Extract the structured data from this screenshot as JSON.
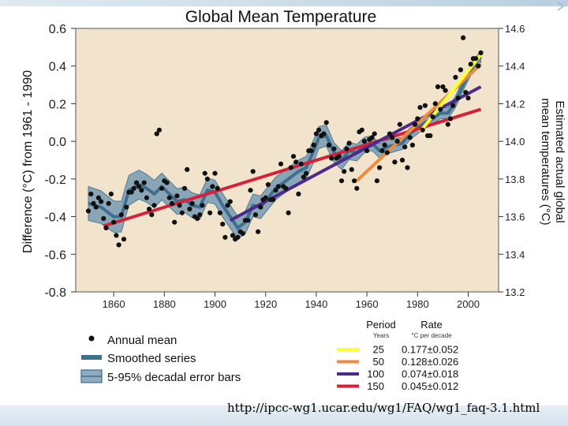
{
  "source_url": "http://ipcc-wg1.ucar.edu/wg1/FAQ/wg1_faq-3.1.html",
  "colors": {
    "panel_bg": "#f2e4cc",
    "points": "#111111",
    "smoothed": "#3f6f8e",
    "error_band": "#7f9fb4",
    "trend_25": "#ffff33",
    "trend_50": "#f08a3c",
    "trend_100": "#4b2a8a",
    "trend_150": "#d3223a"
  },
  "legend": {
    "annual_mean": "Annual mean",
    "smoothed": "Smoothed series",
    "error_bars": "5-95% decadal error bars",
    "period_header": "Period",
    "period_sub": "Years",
    "rate_header": "Rate",
    "rate_sub": "°C per decade",
    "trends": [
      {
        "years": "25",
        "rate": "0.177±0.052",
        "color": "#ffff33"
      },
      {
        "years": "50",
        "rate": "0.128±0.026",
        "color": "#f08a3c"
      },
      {
        "years": "100",
        "rate": "0.074±0.018",
        "color": "#4b2a8a"
      },
      {
        "years": "150",
        "rate": "0.045±0.012",
        "color": "#d3223a"
      }
    ]
  },
  "chart_data": {
    "type": "line",
    "title": "Global Mean Temperature",
    "ylabel": "Difference (°C) from 1961 - 1990",
    "y2label_line1": "Estimated actual global",
    "y2label_line2": "mean temperatures (°C)",
    "xlabel": "",
    "xlim": [
      1845,
      2012
    ],
    "ylim": [
      -0.8,
      0.6
    ],
    "y2lim": [
      13.2,
      14.6
    ],
    "x_ticks": [
      1860,
      1880,
      1900,
      1920,
      1940,
      1960,
      1980,
      2000
    ],
    "y_ticks": [
      0.6,
      0.4,
      0.2,
      0.0,
      -0.2,
      -0.4,
      -0.6,
      -0.8
    ],
    "y_tick_labels": [
      "0.6",
      "0.4",
      "0.2",
      "0.0",
      "-0.2",
      "-0.4",
      "-0.6",
      "-0.8"
    ],
    "y2_ticks": [
      14.6,
      14.4,
      14.2,
      14.0,
      13.8,
      13.6,
      13.4,
      13.2
    ],
    "y2_tick_labels": [
      "14.6",
      "14.4",
      "14.2",
      "14.0",
      "13.8",
      "13.6",
      "13.4",
      "13.2"
    ],
    "grid": false,
    "annual_mean": {
      "x": [
        1850,
        1851,
        1852,
        1853,
        1854,
        1855,
        1856,
        1857,
        1858,
        1859,
        1860,
        1861,
        1862,
        1863,
        1864,
        1865,
        1866,
        1867,
        1868,
        1869,
        1870,
        1871,
        1872,
        1873,
        1874,
        1875,
        1876,
        1877,
        1878,
        1879,
        1880,
        1881,
        1882,
        1883,
        1884,
        1885,
        1886,
        1887,
        1888,
        1889,
        1890,
        1891,
        1892,
        1893,
        1894,
        1895,
        1896,
        1897,
        1898,
        1899,
        1900,
        1901,
        1902,
        1903,
        1904,
        1905,
        1906,
        1907,
        1908,
        1909,
        1910,
        1911,
        1912,
        1913,
        1914,
        1915,
        1916,
        1917,
        1918,
        1919,
        1920,
        1921,
        1922,
        1923,
        1924,
        1925,
        1926,
        1927,
        1928,
        1929,
        1930,
        1931,
        1932,
        1933,
        1934,
        1935,
        1936,
        1937,
        1938,
        1939,
        1940,
        1941,
        1942,
        1943,
        1944,
        1945,
        1946,
        1947,
        1948,
        1949,
        1950,
        1951,
        1952,
        1953,
        1954,
        1955,
        1956,
        1957,
        1958,
        1959,
        1960,
        1961,
        1962,
        1963,
        1964,
        1965,
        1966,
        1967,
        1968,
        1969,
        1970,
        1971,
        1972,
        1973,
        1974,
        1975,
        1976,
        1977,
        1978,
        1979,
        1980,
        1981,
        1982,
        1983,
        1984,
        1985,
        1986,
        1987,
        1988,
        1989,
        1990,
        1991,
        1992,
        1993,
        1994,
        1995,
        1996,
        1997,
        1998,
        1999,
        2000,
        2001,
        2002,
        2003,
        2004,
        2005
      ],
      "values": [
        -0.37,
        -0.28,
        -0.33,
        -0.35,
        -0.3,
        -0.32,
        -0.41,
        -0.46,
        -0.33,
        -0.28,
        -0.43,
        -0.5,
        -0.55,
        -0.39,
        -0.52,
        -0.35,
        -0.27,
        -0.27,
        -0.25,
        -0.22,
        -0.24,
        -0.26,
        -0.22,
        -0.3,
        -0.36,
        -0.39,
        -0.34,
        0.04,
        0.06,
        -0.25,
        -0.21,
        -0.22,
        -0.3,
        -0.33,
        -0.43,
        -0.29,
        -0.34,
        -0.38,
        -0.25,
        -0.15,
        -0.36,
        -0.33,
        -0.4,
        -0.41,
        -0.39,
        -0.34,
        -0.17,
        -0.2,
        -0.38,
        -0.24,
        -0.17,
        -0.25,
        -0.38,
        -0.44,
        -0.51,
        -0.34,
        -0.32,
        -0.5,
        -0.52,
        -0.51,
        -0.48,
        -0.49,
        -0.42,
        -0.42,
        -0.26,
        -0.16,
        -0.39,
        -0.48,
        -0.35,
        -0.31,
        -0.3,
        -0.23,
        -0.31,
        -0.31,
        -0.26,
        -0.24,
        -0.12,
        -0.24,
        -0.25,
        -0.38,
        -0.14,
        -0.08,
        -0.11,
        -0.28,
        -0.12,
        -0.19,
        -0.17,
        -0.05,
        -0.05,
        -0.02,
        0.04,
        0.06,
        0.03,
        0.04,
        0.1,
        -0.02,
        -0.09,
        -0.04,
        -0.09,
        -0.08,
        -0.21,
        -0.16,
        -0.04,
        -0.01,
        -0.15,
        -0.21,
        -0.25,
        0.05,
        0.06,
        0.0,
        -0.05,
        0.01,
        0.02,
        0.04,
        -0.21,
        -0.14,
        -0.05,
        -0.02,
        -0.06,
        0.04,
        0.02,
        -0.11,
        0.0,
        0.09,
        -0.1,
        -0.03,
        -0.14,
        0.02,
        -0.02,
        0.09,
        0.12,
        0.18,
        0.06,
        0.19,
        0.03,
        0.03,
        0.13,
        0.2,
        0.29,
        0.17,
        0.29,
        0.27,
        0.09,
        0.12,
        0.19,
        0.34,
        0.23,
        0.38,
        0.55,
        0.26,
        0.23,
        0.41,
        0.44,
        0.44,
        0.4,
        0.47
      ]
    },
    "smoothed": {
      "x": [
        1850,
        1855,
        1860,
        1863,
        1866,
        1870,
        1873,
        1876,
        1879,
        1882,
        1885,
        1888,
        1891,
        1894,
        1897,
        1900,
        1903,
        1906,
        1909,
        1912,
        1915,
        1918,
        1921,
        1924,
        1927,
        1930,
        1933,
        1936,
        1939,
        1941,
        1944,
        1947,
        1950,
        1953,
        1956,
        1959,
        1962,
        1965,
        1968,
        1971,
        1974,
        1977,
        1980,
        1983,
        1986,
        1989,
        1992,
        1995,
        1998,
        2001,
        2005
      ],
      "values": [
        -0.33,
        -0.35,
        -0.4,
        -0.4,
        -0.26,
        -0.23,
        -0.25,
        -0.28,
        -0.24,
        -0.28,
        -0.32,
        -0.31,
        -0.34,
        -0.35,
        -0.26,
        -0.27,
        -0.34,
        -0.4,
        -0.46,
        -0.43,
        -0.34,
        -0.35,
        -0.3,
        -0.25,
        -0.22,
        -0.19,
        -0.16,
        -0.14,
        -0.05,
        0.02,
        0.03,
        -0.06,
        -0.1,
        -0.05,
        -0.06,
        -0.02,
        -0.01,
        -0.05,
        -0.03,
        -0.02,
        -0.01,
        0.04,
        0.07,
        0.1,
        0.12,
        0.15,
        0.15,
        0.21,
        0.3,
        0.38,
        0.45
      ]
    },
    "error_halfwidth": {
      "x": [
        1850,
        1880,
        1910,
        1940,
        1960,
        1980,
        2005
      ],
      "values": [
        0.09,
        0.07,
        0.06,
        0.06,
        0.04,
        0.03,
        0.03
      ]
    },
    "trends": [
      {
        "period": 25,
        "x": [
          1981,
          2005
        ],
        "values": [
          0.05,
          0.46
        ],
        "color": "#ffff33"
      },
      {
        "period": 50,
        "x": [
          1956,
          2005
        ],
        "values": [
          -0.21,
          0.41
        ],
        "color": "#f08a3c"
      },
      {
        "period": 100,
        "x": [
          1906,
          2005
        ],
        "values": [
          -0.42,
          0.29
        ],
        "color": "#4b2a8a"
      },
      {
        "period": 150,
        "x": [
          1856,
          2005
        ],
        "values": [
          -0.45,
          0.17
        ],
        "color": "#d3223a"
      }
    ]
  }
}
